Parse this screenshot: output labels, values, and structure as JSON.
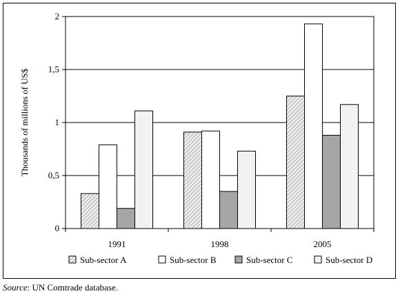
{
  "chart_data": {
    "type": "bar",
    "categories": [
      "1991",
      "1998",
      "2005"
    ],
    "series": [
      {
        "name": "Sub-sector A",
        "values": [
          0.33,
          0.91,
          1.25
        ]
      },
      {
        "name": "Sub-sector B",
        "values": [
          0.79,
          0.92,
          1.93
        ]
      },
      {
        "name": "Sub-sector C",
        "values": [
          0.19,
          0.35,
          0.88
        ]
      },
      {
        "name": "Sub-sector D",
        "values": [
          1.11,
          0.73,
          1.17
        ]
      }
    ],
    "ylabel": "Thousands of millions of US$",
    "xlabel": "",
    "ylim": [
      0,
      2
    ],
    "yticks": [
      "0",
      "0,5",
      "1",
      "1,5",
      "2"
    ],
    "ytick_values": [
      0,
      0.5,
      1,
      1.5,
      2
    ],
    "grid": true,
    "legend_position": "bottom",
    "series_styles": [
      {
        "fill": "hatched",
        "color": "#d9d9d9"
      },
      {
        "fill": "solid",
        "color": "#ffffff"
      },
      {
        "fill": "solid",
        "color": "#a6a6a6"
      },
      {
        "fill": "solid",
        "color": "#f2f2f2"
      }
    ]
  },
  "source": {
    "label": "Source",
    "text": ": UN Comtrade database."
  }
}
